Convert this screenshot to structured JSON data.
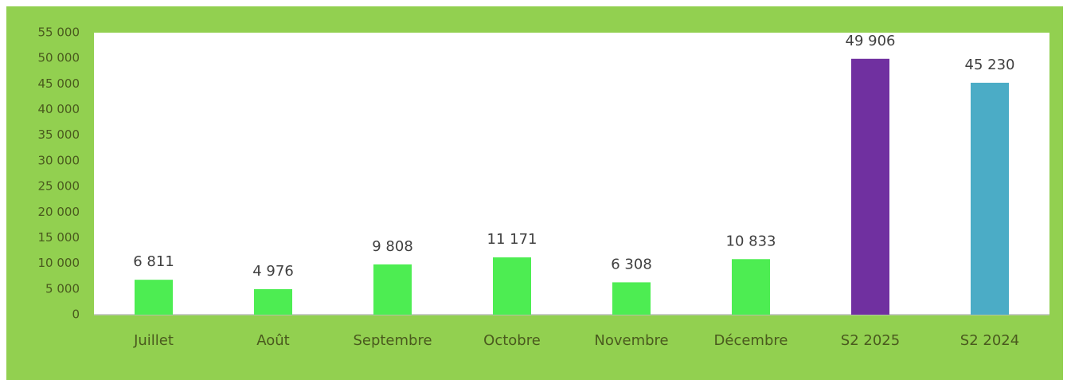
{
  "chart_data": {
    "type": "bar",
    "categories": [
      "Juillet",
      "Août",
      "Septembre",
      "Octobre",
      "Novembre",
      "Décembre",
      "S2 2025",
      "S2 2024"
    ],
    "values": [
      6811,
      4976,
      9808,
      11171,
      6308,
      10833,
      49906,
      45230
    ],
    "value_labels": [
      "6 811",
      "4 976",
      "9 808",
      "11 171",
      "6 308",
      "10 833",
      "49 906",
      "45 230"
    ],
    "colors": [
      "#4ded52",
      "#4ded52",
      "#4ded52",
      "#4ded52",
      "#4ded52",
      "#4ded52",
      "#7030a0",
      "#4bacc6"
    ],
    "ylim": [
      0,
      55000
    ],
    "yticks": [
      0,
      {
        "value": 5000,
        "label": "5 000"
      },
      {
        "value": 10000,
        "label": "10 000"
      },
      {
        "value": 15000,
        "label": "15 000"
      },
      {
        "value": 20000,
        "label": "20 000"
      },
      {
        "value": 25000,
        "label": "25 000"
      },
      {
        "value": 30000,
        "label": "30 000"
      },
      {
        "value": 35000,
        "label": "35 000"
      },
      {
        "value": 40000,
        "label": "40 000"
      },
      {
        "value": 45000,
        "label": "45 000"
      },
      {
        "value": 50000,
        "label": "50 000"
      },
      {
        "value": 55000,
        "label": "55 000"
      }
    ],
    "grid": false
  }
}
